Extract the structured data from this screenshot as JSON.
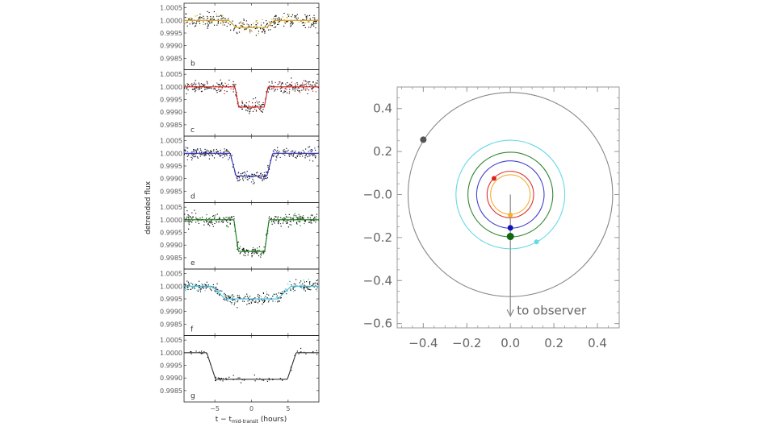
{
  "chart_data": [
    {
      "type": "scatter",
      "title": "",
      "ylabel": "detrended flux",
      "xlabel_parts": {
        "main": "t − t",
        "sub": "mid-transit",
        "unit": " (hours)"
      },
      "xlim": [
        -9.2,
        9.2
      ],
      "x_ticks": [
        -5,
        0,
        5
      ],
      "y_ticks": [
        "1.0005",
        "1.0000",
        "0.9995",
        "0.9990",
        "0.9985"
      ],
      "y_tick_values": [
        1.0005,
        1.0,
        0.9995,
        0.999,
        0.9985
      ],
      "ylim": [
        0.99805,
        1.00068
      ],
      "panels": [
        {
          "label": "b",
          "color": "#d4a017",
          "depth": 0.00028,
          "half_width": 2.6,
          "ingress": 1.0,
          "scatter": 0.00013
        },
        {
          "label": "c",
          "color": "#cc2222",
          "depth": 0.0008,
          "half_width": 2.0,
          "ingress": 0.5,
          "scatter": 0.00013
        },
        {
          "label": "d",
          "color": "#3333bb",
          "depth": 0.0009,
          "half_width": 2.5,
          "ingress": 0.8,
          "scatter": 0.00011
        },
        {
          "label": "e",
          "color": "#117711",
          "depth": 0.00125,
          "half_width": 2.1,
          "ingress": 0.6,
          "scatter": 0.00011
        },
        {
          "label": "f",
          "color": "#44c0d8",
          "depth": 0.0005,
          "half_width": 4.5,
          "ingress": 1.8,
          "scatter": 0.00011
        },
        {
          "label": "g",
          "color": "#333333",
          "depth": 0.00105,
          "half_width": 5.5,
          "ingress": 1.2,
          "scatter": 6e-05
        }
      ]
    },
    {
      "type": "orbit",
      "xlim": [
        -0.52,
        0.5
      ],
      "ylim": [
        -0.62,
        0.5
      ],
      "x_ticks": [
        -0.4,
        -0.2,
        0.0,
        0.2,
        0.4
      ],
      "x_tick_labels": [
        "−0.4",
        "−0.2",
        "0.0",
        "0.2",
        "0.4"
      ],
      "y_ticks": [
        0.4,
        0.2,
        0.0,
        -0.2,
        -0.4,
        -0.6
      ],
      "y_tick_labels": [
        "0.4",
        "0.2",
        "−0.0",
        "−0.2",
        "−0.4",
        "−0.6"
      ],
      "orbits": [
        {
          "name": "b",
          "radius": 0.091,
          "color": "#f0b030",
          "planet": [
            0.0,
            -0.095
          ]
        },
        {
          "name": "c",
          "radius": 0.107,
          "color": "#dd3333",
          "planet": [
            -0.075,
            0.075
          ]
        },
        {
          "name": "d",
          "radius": 0.155,
          "color": "#4444cc",
          "planet": [
            0.0,
            -0.155
          ]
        },
        {
          "name": "e",
          "radius": 0.195,
          "color": "#338833",
          "planet": [
            0.0,
            -0.195
          ]
        },
        {
          "name": "f",
          "radius": 0.25,
          "color": "#66d8e8",
          "planet": [
            0.12,
            -0.22
          ]
        },
        {
          "name": "g",
          "radius": 0.47,
          "color": "#888888",
          "planet": [
            -0.4,
            0.255
          ]
        }
      ],
      "planet_colors": {
        "b": "#f0b030",
        "c": "#dd2222",
        "d": "#1111bb",
        "e": "#116611",
        "f": "#66d8e8",
        "g": "#555555"
      },
      "arrow_label": "to observer",
      "arrow_from": [
        0.0,
        0.0
      ],
      "arrow_to": [
        0.0,
        -0.565
      ]
    }
  ]
}
